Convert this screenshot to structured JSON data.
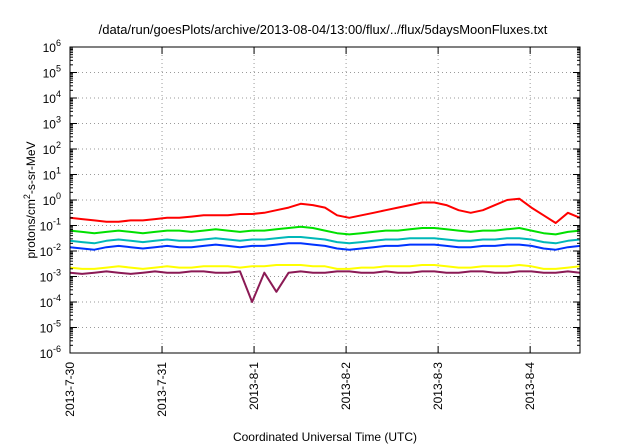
{
  "chart_data": {
    "type": "line",
    "title": "/data/run/goesPlots/archive/2013-08-04/13:00/flux/../flux/5daysMoonFluxes.txt",
    "xlabel": "Coordinated Universal Time (UTC)",
    "ylabel": {
      "base": "protons/cm",
      "sup": "2",
      "rest": "-s-sr-MeV"
    },
    "yscale": "log",
    "ylim": [
      -6,
      6
    ],
    "y_ticks": [
      {
        "base": "10",
        "exp": "-6"
      },
      {
        "base": "10",
        "exp": "-5"
      },
      {
        "base": "10",
        "exp": "-4"
      },
      {
        "base": "10",
        "exp": "-3"
      },
      {
        "base": "10",
        "exp": "-2"
      },
      {
        "base": "10",
        "exp": "-1"
      },
      {
        "base": "10",
        "exp": "0"
      },
      {
        "base": "10",
        "exp": "1"
      },
      {
        "base": "10",
        "exp": "2"
      },
      {
        "base": "10",
        "exp": "3"
      },
      {
        "base": "10",
        "exp": "4"
      },
      {
        "base": "10",
        "exp": "5"
      },
      {
        "base": "10",
        "exp": "6"
      }
    ],
    "x_ticks": [
      "2013-7-30",
      "2013-7-31",
      "2013-8-1",
      "2013-8-2",
      "2013-8-3",
      "2013-8-4"
    ],
    "xlim": [
      "2013-07-30T00:00",
      "2013-08-04T13:00"
    ],
    "grid": true,
    "colors": {
      "grid": "#9a9a9a",
      "axes": "#000000"
    },
    "series": [
      {
        "color": "#ff0000",
        "log10": [
          -0.7,
          -0.75,
          -0.8,
          -0.85,
          -0.85,
          -0.8,
          -0.8,
          -0.75,
          -0.7,
          -0.7,
          -0.65,
          -0.6,
          -0.6,
          -0.6,
          -0.55,
          -0.55,
          -0.5,
          -0.4,
          -0.3,
          -0.15,
          -0.2,
          -0.3,
          -0.6,
          -0.7,
          -0.6,
          -0.5,
          -0.4,
          -0.3,
          -0.2,
          -0.1,
          -0.1,
          -0.2,
          -0.4,
          -0.5,
          -0.4,
          -0.2,
          0,
          0.05,
          -0.3,
          -0.6,
          -0.9,
          -0.5,
          -0.7
        ]
      },
      {
        "color": "#00e000",
        "log10": [
          -1.2,
          -1.25,
          -1.3,
          -1.25,
          -1.2,
          -1.25,
          -1.3,
          -1.25,
          -1.2,
          -1.2,
          -1.25,
          -1.2,
          -1.15,
          -1.2,
          -1.25,
          -1.2,
          -1.2,
          -1.15,
          -1.1,
          -1.05,
          -1.1,
          -1.2,
          -1.3,
          -1.35,
          -1.3,
          -1.25,
          -1.2,
          -1.2,
          -1.15,
          -1.1,
          -1.1,
          -1.15,
          -1.2,
          -1.25,
          -1.2,
          -1.2,
          -1.15,
          -1.1,
          -1.2,
          -1.3,
          -1.35,
          -1.25,
          -1.2
        ]
      },
      {
        "color": "#00b8b8",
        "log10": [
          -1.6,
          -1.65,
          -1.7,
          -1.6,
          -1.55,
          -1.6,
          -1.65,
          -1.6,
          -1.55,
          -1.6,
          -1.6,
          -1.55,
          -1.5,
          -1.55,
          -1.6,
          -1.55,
          -1.55,
          -1.5,
          -1.45,
          -1.45,
          -1.5,
          -1.55,
          -1.65,
          -1.7,
          -1.65,
          -1.6,
          -1.55,
          -1.55,
          -1.5,
          -1.5,
          -1.5,
          -1.55,
          -1.6,
          -1.6,
          -1.55,
          -1.55,
          -1.5,
          -1.5,
          -1.55,
          -1.65,
          -1.7,
          -1.6,
          -1.55
        ]
      },
      {
        "color": "#0033ff",
        "log10": [
          -1.85,
          -1.9,
          -1.95,
          -1.85,
          -1.8,
          -1.85,
          -1.9,
          -1.85,
          -1.8,
          -1.85,
          -1.85,
          -1.8,
          -1.75,
          -1.8,
          -1.85,
          -1.8,
          -1.8,
          -1.75,
          -1.7,
          -1.7,
          -1.75,
          -1.8,
          -1.9,
          -1.95,
          -1.9,
          -1.85,
          -1.8,
          -1.8,
          -1.75,
          -1.75,
          -1.75,
          -1.8,
          -1.85,
          -1.85,
          -1.8,
          -1.8,
          -1.75,
          -1.75,
          -1.8,
          -1.9,
          -1.95,
          -1.85,
          -1.8
        ]
      },
      {
        "color": "#ffff00",
        "log10": [
          -2.65,
          -2.7,
          -2.7,
          -2.65,
          -2.6,
          -2.65,
          -2.7,
          -2.65,
          -2.6,
          -2.65,
          -2.65,
          -2.6,
          -2.6,
          -2.6,
          -2.65,
          -2.6,
          -2.6,
          -2.55,
          -2.55,
          -2.55,
          -2.6,
          -2.6,
          -2.7,
          -2.7,
          -2.65,
          -2.65,
          -2.6,
          -2.6,
          -2.6,
          -2.55,
          -2.55,
          -2.6,
          -2.65,
          -2.65,
          -2.6,
          -2.6,
          -2.6,
          -2.55,
          -2.6,
          -2.7,
          -2.7,
          -2.65,
          -2.6
        ]
      },
      {
        "color": "#8b1a55",
        "log10": [
          -2.85,
          -2.9,
          -2.85,
          -2.8,
          -2.85,
          -2.9,
          -2.85,
          -2.8,
          -2.85,
          -2.85,
          -2.8,
          -2.8,
          -2.85,
          -2.85,
          -2.8,
          -4.0,
          -2.85,
          -3.6,
          -2.85,
          -2.8,
          -2.85,
          -2.85,
          -2.8,
          -2.8,
          -2.85,
          -2.85,
          -2.8,
          -2.85,
          -2.85,
          -2.8,
          -2.8,
          -2.85,
          -2.85,
          -2.8,
          -2.8,
          -2.85,
          -2.85,
          -2.8,
          -2.8,
          -2.85,
          -2.85,
          -2.8,
          -2.85
        ]
      }
    ]
  }
}
